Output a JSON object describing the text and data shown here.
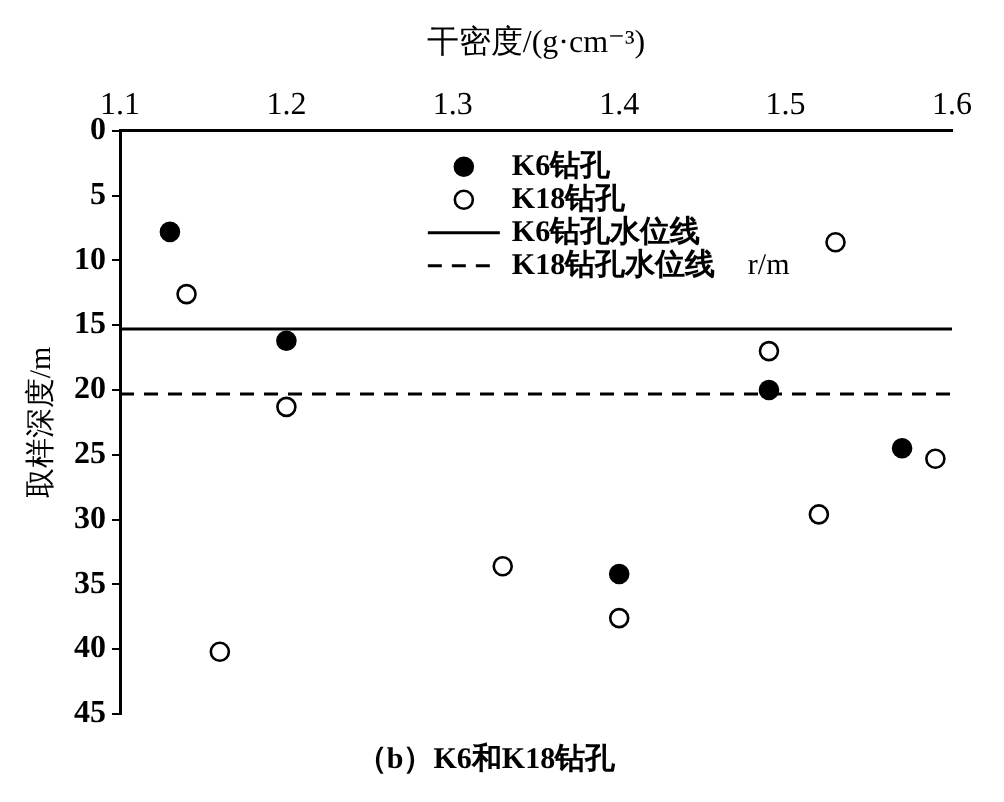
{
  "chart_data": {
    "type": "scatter",
    "title": "（b）K6和K18钻孔",
    "xlabel": "干密度/(g·cm⁻³)",
    "ylabel": "取样深度/m",
    "xlim": [
      1.1,
      1.6
    ],
    "xticks": [
      1.1,
      1.2,
      1.3,
      1.4,
      1.5,
      1.6
    ],
    "ylim": [
      45,
      0
    ],
    "yticks": [
      0,
      5,
      10,
      15,
      20,
      25,
      30,
      35,
      40,
      45
    ],
    "grid": false,
    "legend": "top",
    "annotations": [
      "r/m"
    ],
    "series": [
      {
        "name": "K6钻孔",
        "marker": "circle",
        "color": "#000000",
        "x": [
          1.13,
          1.2,
          1.49,
          1.4,
          1.57
        ],
        "values": [
          7.8,
          16.2,
          20,
          34.2,
          24.5
        ]
      },
      {
        "name": "K18钻孔",
        "marker": "circle",
        "color": "#ffffff",
        "x": [
          1.14,
          1.2,
          1.16,
          1.33,
          1.4,
          1.49,
          1.53,
          1.52,
          1.59
        ],
        "values": [
          12.6,
          21.3,
          40.2,
          33.6,
          37.6,
          17,
          8.6,
          29.6,
          25.3
        ]
      },
      {
        "name": "K6钻孔水位线",
        "type": "line",
        "marker": "none",
        "line_style": "solid",
        "color": "#000000",
        "x": [
          1.1,
          1.6
        ],
        "values": [
          15.3,
          15.3
        ]
      },
      {
        "name": "K18钻孔水位线",
        "type": "line",
        "marker": "none",
        "line_style": "dashed",
        "color": "#000000",
        "x": [
          1.1,
          1.6
        ],
        "values": [
          20.3,
          20.3
        ]
      }
    ]
  }
}
